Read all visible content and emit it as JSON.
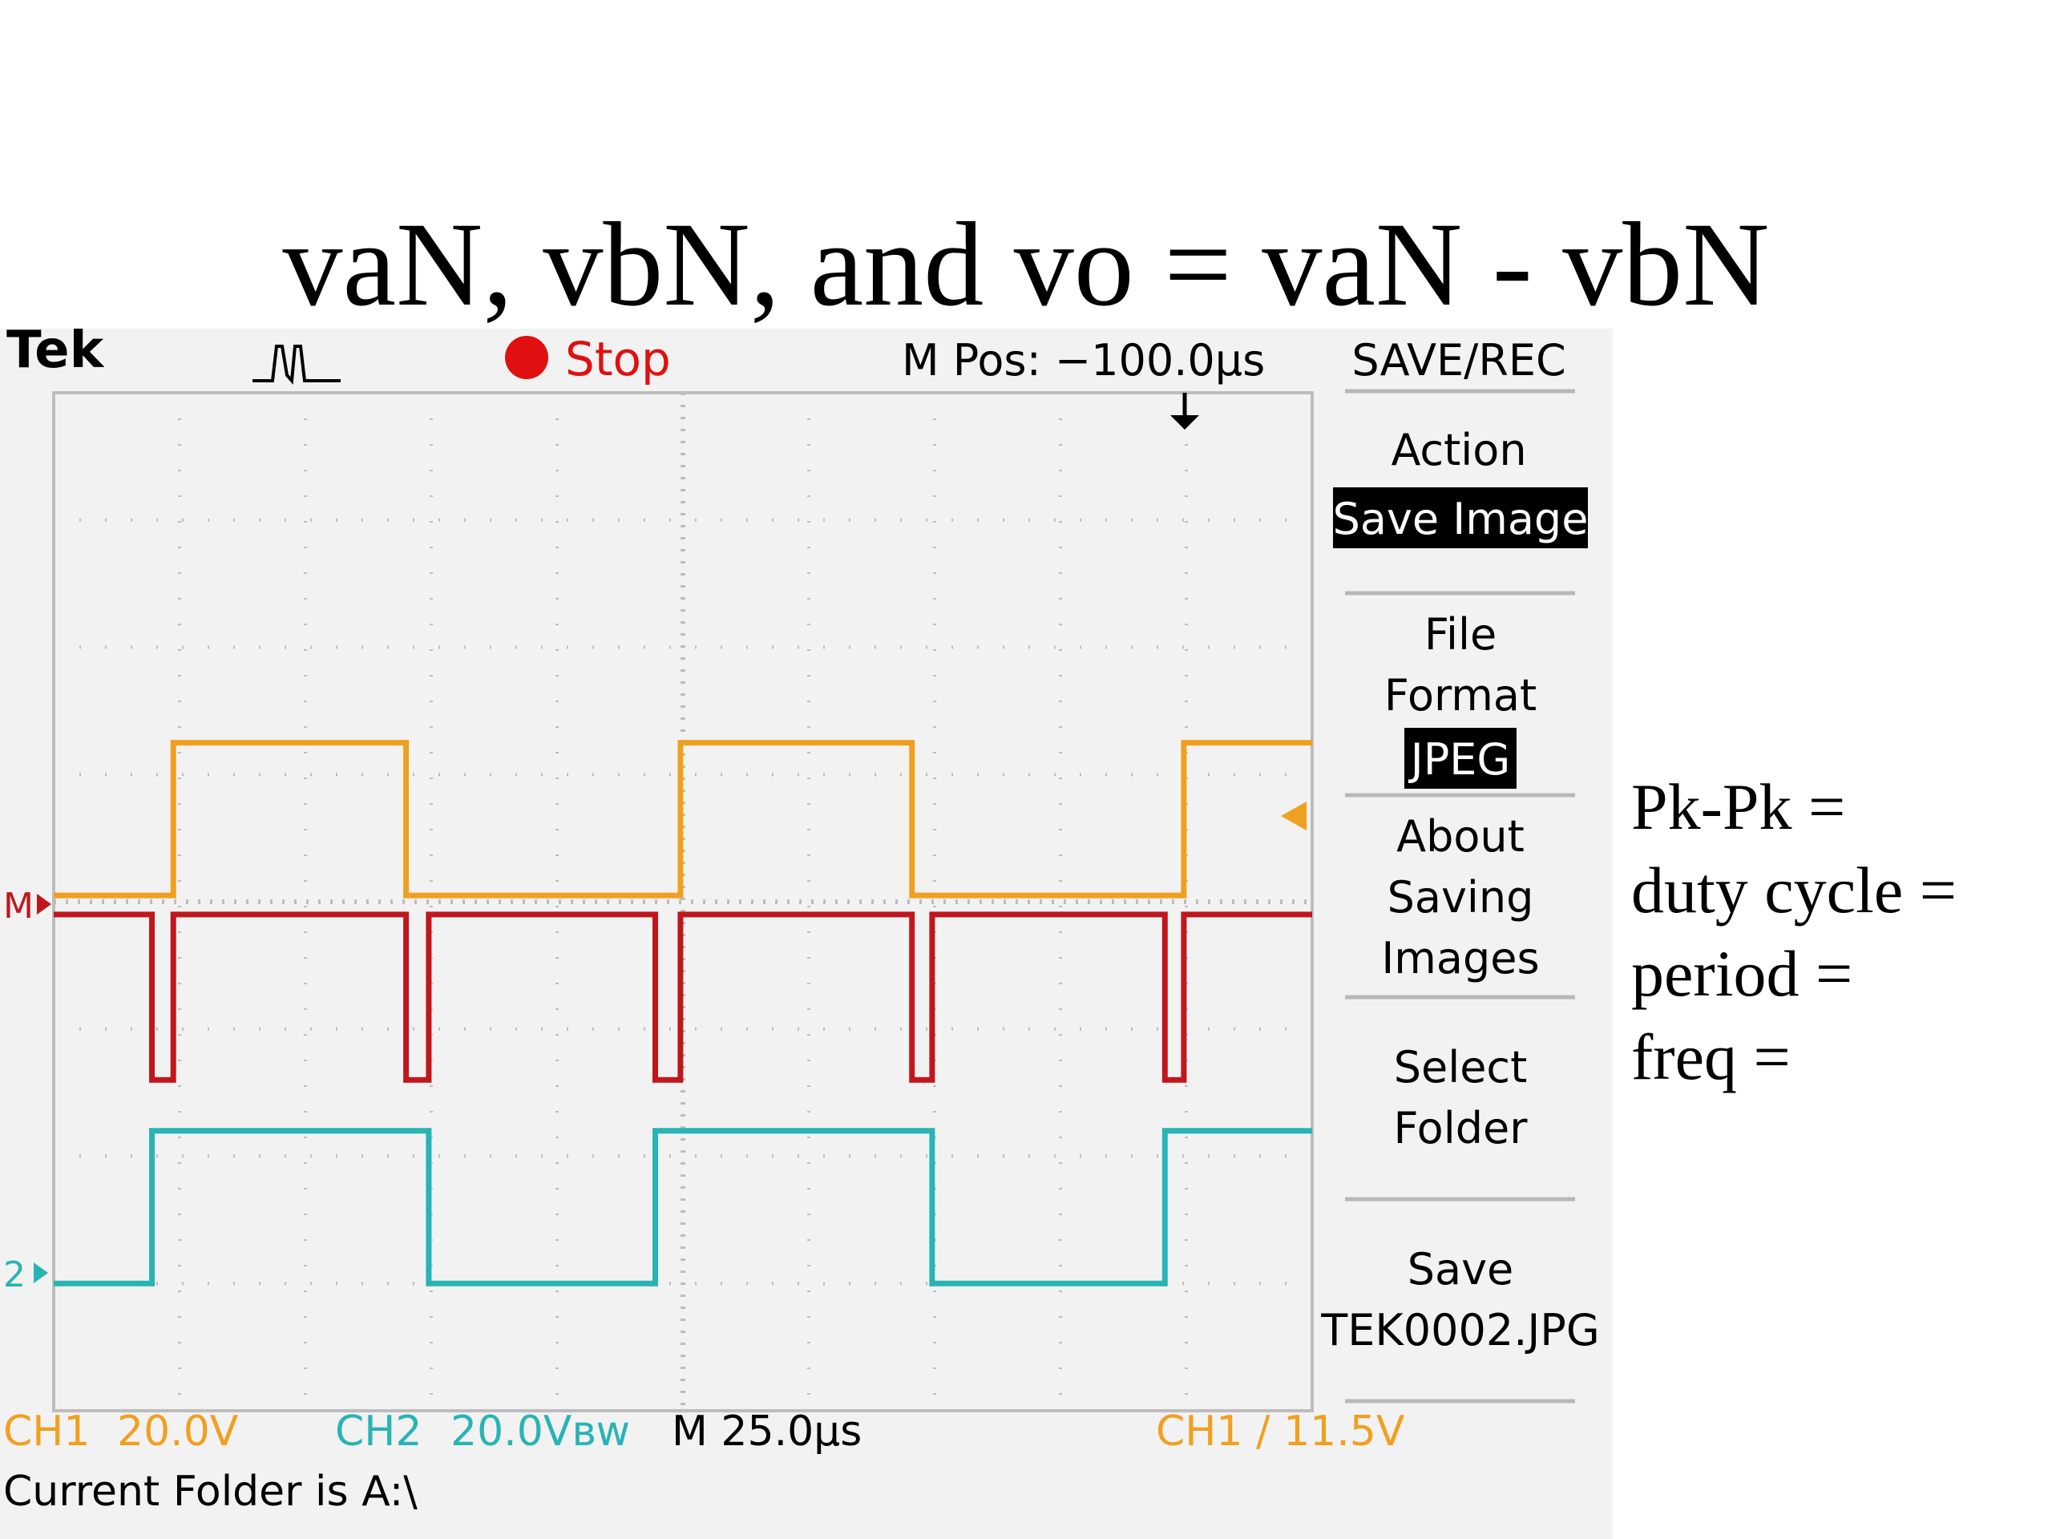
{
  "slide": {
    "title": "vaN, vbN, and vo = vaN - vbN",
    "notes": [
      "Pk-Pk =",
      "duty cycle =",
      "period =",
      "freq ="
    ]
  },
  "scope": {
    "brand": "Tek",
    "status": "Stop",
    "mpos": "M Pos: −100.0µs",
    "menu_title": "SAVE/REC",
    "menu": {
      "action_label": "Action",
      "action_value": "Save Image",
      "fileformat_line1": "File",
      "fileformat_line2": "Format",
      "fileformat_value": "JPEG",
      "about_line1": "About",
      "about_line2": "Saving",
      "about_line3": "Images",
      "select_line1": "Select",
      "select_line2": "Folder",
      "save_line1": "Save",
      "save_line2": "TEK0002.JPG"
    },
    "ch1_label": "CH1",
    "ch1_scale": "20.0V",
    "ch2_label": "CH2",
    "ch2_scale": "20.0Vʙᴡ",
    "timebase": "M 25.0µs",
    "trigger": "CH1 ∕ 11.5V",
    "folder": "Current Folder is A:\\",
    "marker_m": "M",
    "marker_2": "2",
    "colors": {
      "ch1": "#f0a020",
      "ch2": "#28b4b4",
      "math": "#c0161c",
      "stop": "#e01010"
    }
  },
  "chart_data": {
    "type": "line",
    "xlabel": "",
    "ylabel": "",
    "x_divisions": 10,
    "y_divisions": 8,
    "xlim": [
      0,
      10
    ],
    "ylim": [
      0,
      8
    ],
    "series": [
      {
        "x": [
          0,
          0.95,
          0.95,
          2.8,
          2.8,
          4.98,
          4.98,
          6.82,
          6.82,
          8.98,
          8.98,
          10
        ],
        "y": [
          4.05,
          4.05,
          5.25,
          5.25,
          4.05,
          4.05,
          5.25,
          5.25,
          4.05,
          4.05,
          5.25,
          5.25
        ]
      },
      {
        "x": [
          0,
          0.78,
          0.78,
          2.98,
          2.98,
          4.78,
          4.78,
          6.98,
          6.98,
          8.83,
          8.83,
          10
        ],
        "y": [
          1.0,
          1.0,
          2.2,
          2.2,
          1.0,
          1.0,
          2.2,
          2.2,
          1.0,
          1.0,
          2.2,
          2.2
        ]
      },
      {
        "x": [
          0,
          0.78,
          0.78,
          0.95,
          0.95,
          2.8,
          2.8,
          2.98,
          2.98,
          4.78,
          4.78,
          4.98,
          4.98,
          6.82,
          6.82,
          6.98,
          6.98,
          8.83,
          8.83,
          8.98,
          8.98,
          10
        ],
        "y": [
          3.9,
          3.9,
          2.6,
          2.6,
          3.9,
          3.9,
          2.6,
          2.6,
          3.9,
          3.9,
          2.6,
          2.6,
          3.9,
          3.9,
          2.6,
          2.6,
          3.9,
          3.9,
          2.6,
          2.6,
          3.9,
          3.9
        ]
      }
    ]
  }
}
